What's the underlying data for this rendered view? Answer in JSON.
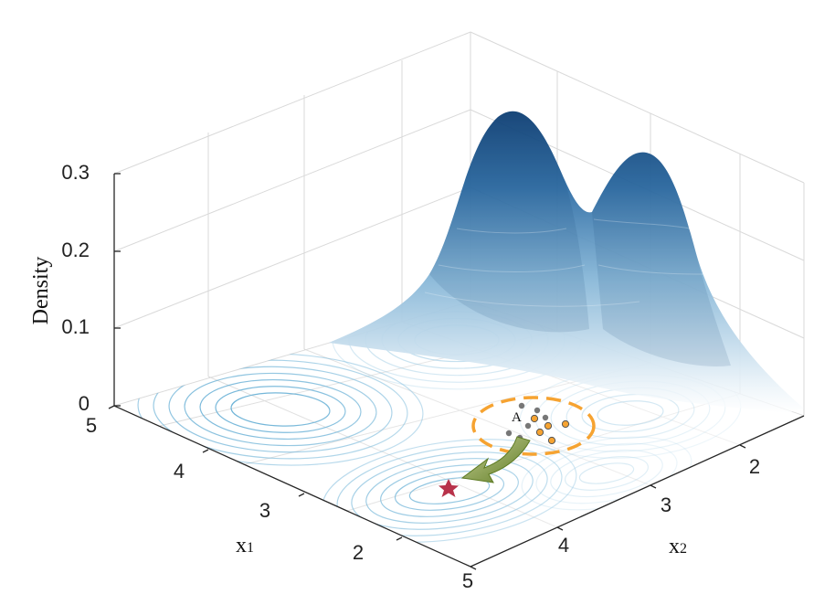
{
  "chart_data": {
    "type": "surface",
    "zlabel": "Density",
    "xlabel": "x",
    "xlabel_sub": "1",
    "ylabel": "x",
    "ylabel_sub": "2",
    "z_ticks": [
      "0",
      "0.1",
      "0.2",
      "0.3"
    ],
    "x1_ticks": [
      "5",
      "4",
      "3",
      "2"
    ],
    "x2_ticks": [
      "2",
      "3",
      "4",
      "5"
    ],
    "zlim": [
      0,
      0.3
    ],
    "grid": true,
    "colormap": [
      "#ffffff",
      "#9cc3de",
      "#3e7db3",
      "#0f3f74"
    ],
    "contour_color": "#4fa3cf",
    "annotations": {
      "point_label": "A",
      "ellipse_color": "#f6a331",
      "arrow_color": "#6d8b2b",
      "star_color": "#b8324a"
    }
  }
}
